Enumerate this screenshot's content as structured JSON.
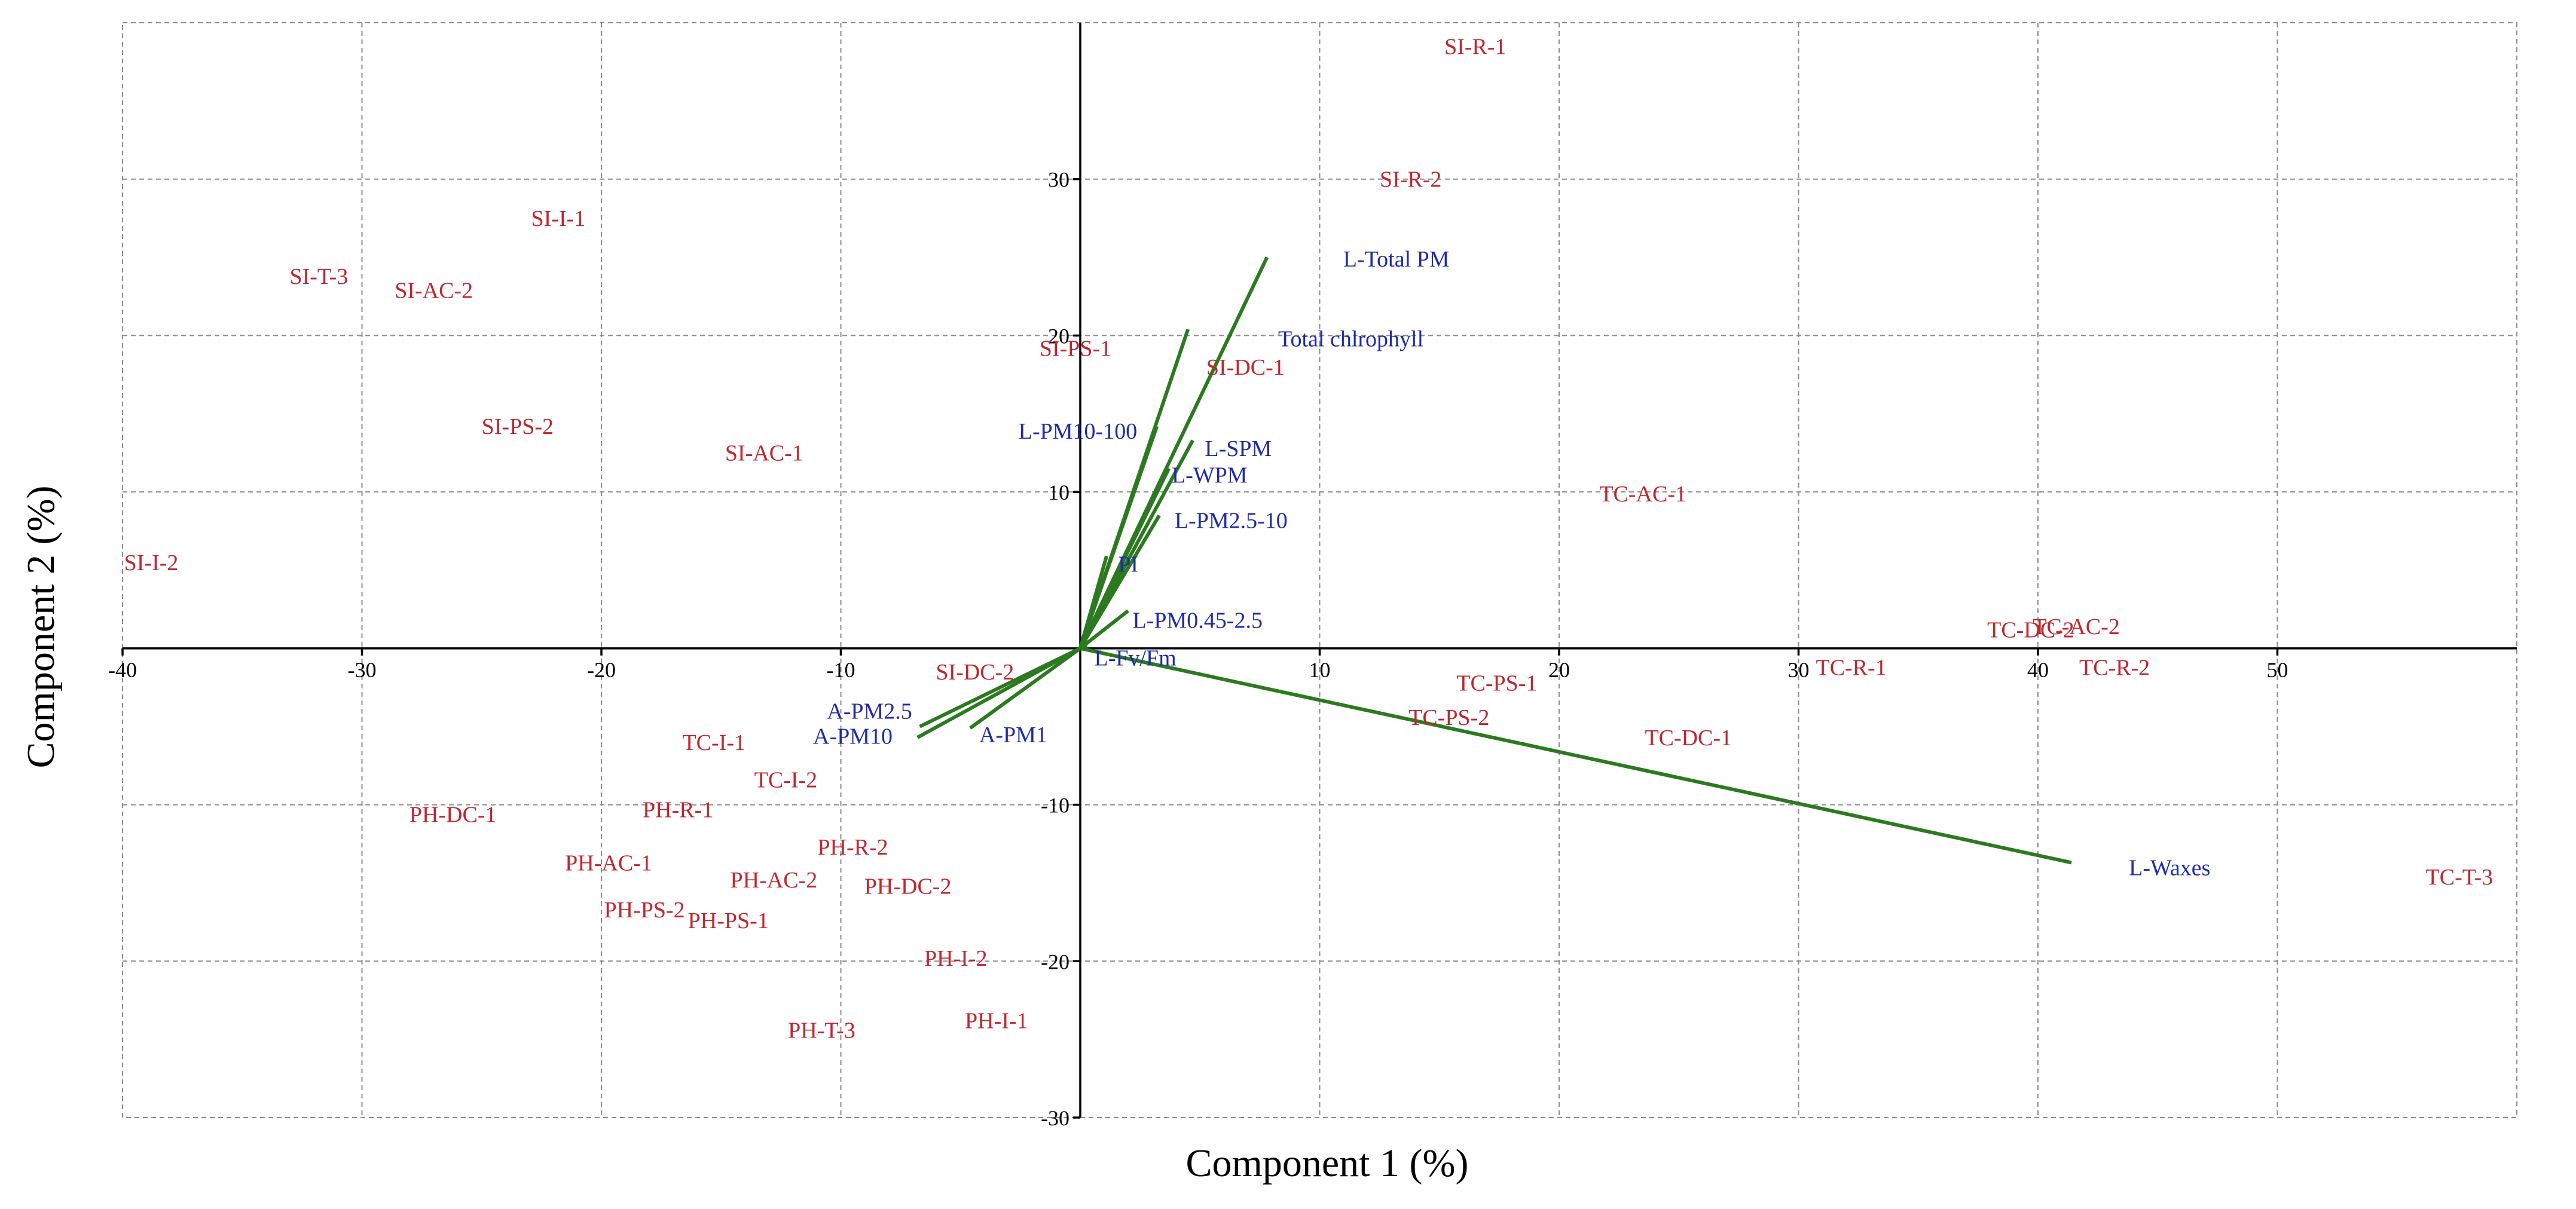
{
  "chart_data": {
    "type": "scatter",
    "subtype": "pca-biplot",
    "xlabel": "Component 1 (%)",
    "ylabel": "Component 2 (%)",
    "xlim": [
      -40,
      60
    ],
    "ylim": [
      -30,
      40
    ],
    "x_ticks": [
      -40,
      -30,
      -20,
      -10,
      10,
      20,
      30,
      40,
      50
    ],
    "y_ticks": [
      30,
      20,
      10,
      -10,
      -20,
      -30
    ],
    "grid": true,
    "colors": {
      "samples": "#c0262e",
      "variables": "#1f2aa8",
      "vectors": "#2b7a1f"
    },
    "samples": [
      {
        "label": "SI-R-1",
        "x": 16.5,
        "y": 38.5
      },
      {
        "label": "SI-R-2",
        "x": 13.8,
        "y": 30.0
      },
      {
        "label": "SI-I-1",
        "x": -21.8,
        "y": 27.5
      },
      {
        "label": "SI-T-3",
        "x": -31.8,
        "y": 23.8
      },
      {
        "label": "SI-AC-2",
        "x": -27.0,
        "y": 22.9
      },
      {
        "label": "SI-PS-1",
        "x": -0.2,
        "y": 19.2
      },
      {
        "label": "SI-DC-1",
        "x": 6.9,
        "y": 18.0
      },
      {
        "label": "SI-PS-2",
        "x": -23.5,
        "y": 14.2
      },
      {
        "label": "SI-AC-1",
        "x": -13.2,
        "y": 12.5
      },
      {
        "label": "SI-I-2",
        "x": -38.8,
        "y": 5.5
      },
      {
        "label": "SI-DC-2",
        "x": -4.4,
        "y": -1.5
      },
      {
        "label": "TC-AC-1",
        "x": 23.5,
        "y": 9.9
      },
      {
        "label": "TC-DC-2",
        "x": 39.7,
        "y": 1.2
      },
      {
        "label": "TC-AC-2",
        "x": 41.6,
        "y": 1.4
      },
      {
        "label": "TC-R-1",
        "x": 32.2,
        "y": -1.2
      },
      {
        "label": "TC-R-2",
        "x": 43.2,
        "y": -1.2
      },
      {
        "label": "TC-PS-1",
        "x": 17.4,
        "y": -2.2
      },
      {
        "label": "TC-PS-2",
        "x": 15.4,
        "y": -4.4
      },
      {
        "label": "TC-DC-1",
        "x": 25.4,
        "y": -5.7
      },
      {
        "label": "TC-T-3",
        "x": 57.6,
        "y": -14.6
      },
      {
        "label": "TC-I-1",
        "x": -15.3,
        "y": -6.0
      },
      {
        "label": "TC-I-2",
        "x": -12.3,
        "y": -8.4
      },
      {
        "label": "PH-DC-1",
        "x": -26.2,
        "y": -10.6
      },
      {
        "label": "PH-R-1",
        "x": -16.8,
        "y": -10.3
      },
      {
        "label": "PH-AC-1",
        "x": -19.7,
        "y": -13.7
      },
      {
        "label": "PH-R-2",
        "x": -9.5,
        "y": -12.7
      },
      {
        "label": "PH-AC-2",
        "x": -12.8,
        "y": -14.8
      },
      {
        "label": "PH-DC-2",
        "x": -7.2,
        "y": -15.2
      },
      {
        "label": "PH-PS-2",
        "x": -18.2,
        "y": -16.7
      },
      {
        "label": "PH-PS-1",
        "x": -14.7,
        "y": -17.4
      },
      {
        "label": "PH-I-2",
        "x": -5.2,
        "y": -19.8
      },
      {
        "label": "PH-I-1",
        "x": -3.5,
        "y": -23.8
      },
      {
        "label": "PH-T-3",
        "x": -10.8,
        "y": -24.4
      }
    ],
    "variables": [
      {
        "label": "L-Total PM",
        "x": 7.8,
        "y": 25.0,
        "label_x": 13.2,
        "label_y": 24.9
      },
      {
        "label": "Total chlrophyll",
        "x": 4.5,
        "y": 20.4,
        "label_x": 11.3,
        "label_y": 19.8
      },
      {
        "label": "L-PM10-100",
        "x": 3.2,
        "y": 14.2,
        "label_x": -0.1,
        "label_y": 13.9
      },
      {
        "label": "L-SPM",
        "x": 4.7,
        "y": 13.3,
        "label_x": 6.6,
        "label_y": 12.8
      },
      {
        "label": "L-WPM",
        "x": 3.7,
        "y": 11.5,
        "label_x": 5.4,
        "label_y": 11.1
      },
      {
        "label": "L-PM2.5-10",
        "x": 3.3,
        "y": 8.5,
        "label_x": 6.3,
        "label_y": 8.2
      },
      {
        "label": "PI",
        "x": 1.1,
        "y": 5.9,
        "label_x": 2.0,
        "label_y": 5.4
      },
      {
        "label": "L-PM0.45-2.5",
        "x": 2.0,
        "y": 2.4,
        "label_x": 4.9,
        "label_y": 1.8
      },
      {
        "label": "L-Fv/Fm",
        "x": 0.3,
        "y": 0.1,
        "label_x": 2.3,
        "label_y": -0.6
      },
      {
        "label": "A-PM2.5",
        "x": -6.7,
        "y": -5.0,
        "label_x": -8.8,
        "label_y": -4.0
      },
      {
        "label": "A-PM10",
        "x": -6.8,
        "y": -5.7,
        "label_x": -9.5,
        "label_y": -5.6
      },
      {
        "label": "A-PM1",
        "x": -4.6,
        "y": -5.1,
        "label_x": -2.8,
        "label_y": -5.5
      },
      {
        "label": "L-Waxes",
        "x": 41.4,
        "y": -13.7,
        "label_x": 45.5,
        "label_y": -14.0
      }
    ]
  }
}
